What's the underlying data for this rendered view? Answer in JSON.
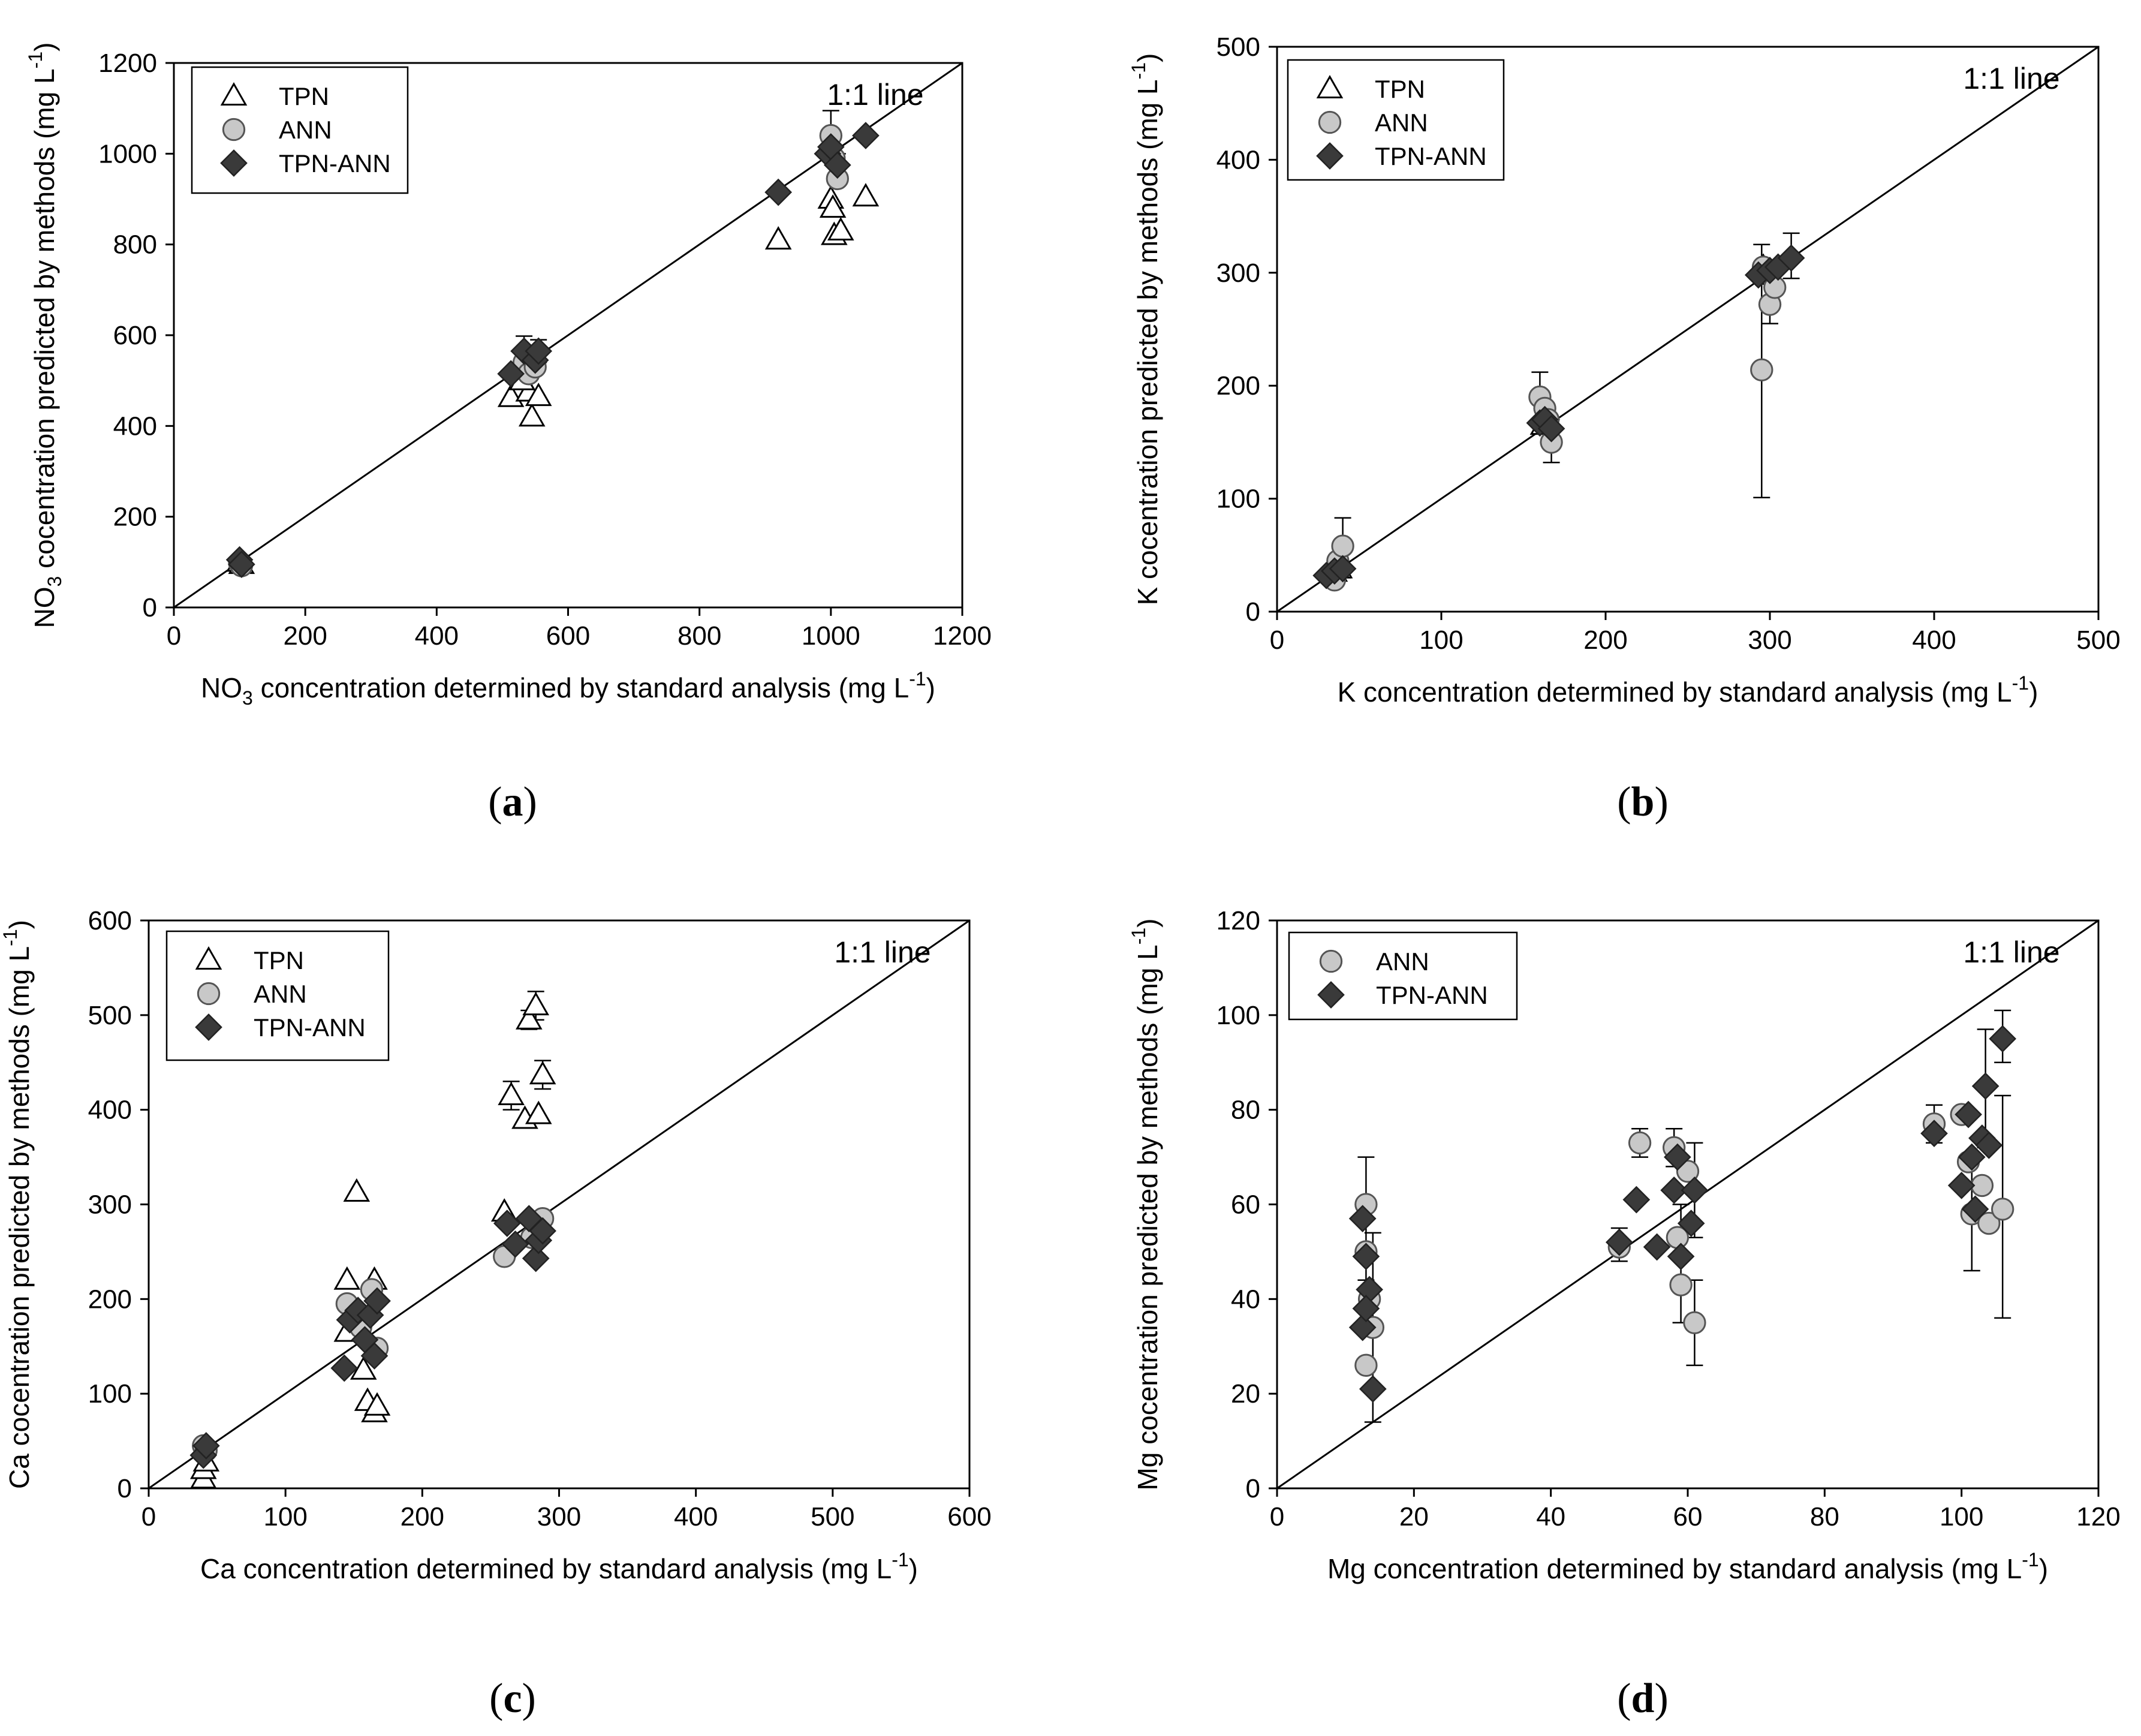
{
  "figure": {
    "one_to_one_label": "1:1 line"
  },
  "colors": {
    "tpn_fill": "#ffffff",
    "ann_fill": "#c8c8c8",
    "tpnann_fill": "#3a3a3a",
    "stroke": "#000000"
  },
  "chart_data": [
    {
      "id": "a",
      "type": "scatter",
      "caption": "a",
      "xlabel": "NO3 concentration determined by standard analysis (mg L-1)",
      "ylabel": "NO3 cocentration predicted by methods (mg L-1)",
      "xlabel_parts": {
        "pre": "NO",
        "sub": "3",
        "mid": " concentration determined by standard analysis (mg L",
        "sup": "-1",
        "post": ")"
      },
      "ylabel_parts": {
        "pre": "NO",
        "sub": "3",
        "mid": " cocentration predicted by methods (mg L",
        "sup": "-1",
        "post": ")"
      },
      "xlim": [
        0,
        1200
      ],
      "ylim": [
        0,
        1200
      ],
      "xticks": [
        "0",
        "200",
        "400",
        "600",
        "800",
        "1000",
        "1200"
      ],
      "yticks": [
        "0",
        "200",
        "400",
        "600",
        "800",
        "1000",
        "1200"
      ],
      "legend": [
        "TPN",
        "ANN",
        "TPN-ANN"
      ],
      "series": [
        {
          "name": "TPN",
          "marker": "triangle",
          "points": [
            [
              100,
              100
            ],
            [
              103,
              95
            ],
            [
              513,
              463
            ],
            [
              540,
              475
            ],
            [
              545,
              420
            ],
            [
              555,
              465
            ],
            [
              530,
              500
            ],
            [
              920,
              810
            ],
            [
              1000,
              900
            ],
            [
              1003,
              880
            ],
            [
              1005,
              820
            ],
            [
              1015,
              830
            ],
            [
              1053,
              905
            ]
          ]
        },
        {
          "name": "ANN",
          "marker": "circle",
          "points": [
            [
              100,
              98
            ],
            [
              103,
              92
            ],
            [
              533,
              540
            ],
            [
              540,
              515
            ],
            [
              550,
              530
            ],
            [
              1000,
              1040
            ],
            [
              1010,
              945
            ],
            [
              1005,
              990
            ]
          ]
        },
        {
          "name": "TPN-ANN",
          "marker": "diamond",
          "points": [
            [
              100,
              105
            ],
            [
              103,
              95
            ],
            [
              513,
              515
            ],
            [
              533,
              565
            ],
            [
              550,
              545
            ],
            [
              555,
              565
            ],
            [
              920,
              915
            ],
            [
              995,
              1000
            ],
            [
              1000,
              1015
            ],
            [
              1010,
              975
            ],
            [
              1053,
              1040
            ]
          ]
        }
      ],
      "errorbars": [
        {
          "x": 1000,
          "y": 1040,
          "lo": 990,
          "hi": 1095
        },
        {
          "x": 533,
          "y": 565,
          "lo": 540,
          "hi": 598
        },
        {
          "x": 555,
          "y": 565,
          "lo": 540,
          "hi": 590
        },
        {
          "x": 1010,
          "y": 975,
          "lo": 950,
          "hi": 1000
        }
      ]
    },
    {
      "id": "b",
      "type": "scatter",
      "caption": "b",
      "xlabel": "K concentration determined by standard analysis (mg L-1)",
      "ylabel": "K cocentration predicted by methods (mg L-1)",
      "xlabel_parts": {
        "pre": "K concentration determined by standard analysis (mg L",
        "sub": "",
        "mid": "",
        "sup": "-1",
        "post": ")"
      },
      "ylabel_parts": {
        "pre": "K cocentration predicted by methods (mg L",
        "sub": "",
        "mid": "",
        "sup": "-1",
        "post": ")"
      },
      "xlim": [
        0,
        500
      ],
      "ylim": [
        0,
        500
      ],
      "xticks": [
        "0",
        "100",
        "200",
        "300",
        "400",
        "500"
      ],
      "yticks": [
        "0",
        "100",
        "200",
        "300",
        "400",
        "500"
      ],
      "legend": [
        "TPN",
        "ANN",
        "TPN-ANN"
      ],
      "series": [
        {
          "name": "TPN",
          "marker": "triangle",
          "points": [
            [
              35,
              35
            ],
            [
              38,
              38
            ],
            [
              162,
              165
            ],
            [
              165,
              170
            ],
            [
              296,
              305
            ],
            [
              300,
              300
            ]
          ]
        },
        {
          "name": "ANN",
          "marker": "circle",
          "points": [
            [
              35,
              28
            ],
            [
              37,
              45
            ],
            [
              40,
              58
            ],
            [
              160,
              190
            ],
            [
              163,
              180
            ],
            [
              165,
              170
            ],
            [
              167,
              150
            ],
            [
              295,
              214
            ],
            [
              300,
              272
            ],
            [
              303,
              287
            ],
            [
              296,
              305
            ]
          ]
        },
        {
          "name": "TPN-ANN",
          "marker": "diamond",
          "points": [
            [
              30,
              32
            ],
            [
              35,
              36
            ],
            [
              40,
              38
            ],
            [
              160,
              167
            ],
            [
              163,
              170
            ],
            [
              167,
              162
            ],
            [
              293,
              298
            ],
            [
              300,
              302
            ],
            [
              305,
              305
            ],
            [
              313,
              313
            ]
          ]
        }
      ],
      "errorbars": [
        {
          "x": 295,
          "y": 214,
          "lo": 101,
          "hi": 325
        },
        {
          "x": 40,
          "y": 58,
          "lo": 30,
          "hi": 83
        },
        {
          "x": 160,
          "y": 190,
          "lo": 165,
          "hi": 212
        },
        {
          "x": 167,
          "y": 150,
          "lo": 132,
          "hi": 170
        },
        {
          "x": 313,
          "y": 313,
          "lo": 295,
          "hi": 335
        },
        {
          "x": 300,
          "y": 272,
          "lo": 255,
          "hi": 290
        }
      ]
    },
    {
      "id": "c",
      "type": "scatter",
      "caption": "c",
      "xlabel": "Ca concentration determined by standard analysis (mg L-1)",
      "ylabel": "Ca cocentration predicted by methods (mg L-1)",
      "xlabel_parts": {
        "pre": "Ca concentration determined by standard analysis (mg L",
        "sub": "",
        "mid": "",
        "sup": "-1",
        "post": ")"
      },
      "ylabel_parts": {
        "pre": "Ca cocentration predicted by methods (mg L",
        "sub": "",
        "mid": "",
        "sup": "-1",
        "post": ")"
      },
      "xlim": [
        0,
        600
      ],
      "ylim": [
        0,
        600
      ],
      "xticks": [
        "0",
        "100",
        "200",
        "300",
        "400",
        "500",
        "600"
      ],
      "yticks": [
        "0",
        "100",
        "200",
        "300",
        "400",
        "500",
        "600"
      ],
      "legend": [
        "TPN",
        "ANN",
        "TPN-ANN"
      ],
      "series": [
        {
          "name": "TPN",
          "marker": "triangle",
          "points": [
            [
              40,
              10
            ],
            [
              40,
              20
            ],
            [
              42,
              28
            ],
            [
              145,
              165
            ],
            [
              145,
              220
            ],
            [
              152,
              313
            ],
            [
              157,
              125
            ],
            [
              160,
              92
            ],
            [
              165,
              80
            ],
            [
              165,
              220
            ],
            [
              167,
              87
            ],
            [
              260,
              292
            ],
            [
              265,
              415
            ],
            [
              275,
              390
            ],
            [
              278,
              495
            ],
            [
              283,
              510
            ],
            [
              285,
              395
            ],
            [
              288,
              437
            ]
          ]
        },
        {
          "name": "ANN",
          "marker": "circle",
          "points": [
            [
              40,
              45
            ],
            [
              42,
              40
            ],
            [
              145,
              195
            ],
            [
              155,
              170
            ],
            [
              163,
              210
            ],
            [
              167,
              148
            ],
            [
              260,
              245
            ],
            [
              280,
              265
            ],
            [
              285,
              280
            ],
            [
              288,
              285
            ]
          ]
        },
        {
          "name": "TPN-ANN",
          "marker": "diamond",
          "points": [
            [
              40,
              35
            ],
            [
              42,
              45
            ],
            [
              143,
              127
            ],
            [
              147,
              178
            ],
            [
              153,
              188
            ],
            [
              158,
              157
            ],
            [
              162,
              183
            ],
            [
              165,
              140
            ],
            [
              167,
              198
            ],
            [
              262,
              280
            ],
            [
              268,
              258
            ],
            [
              278,
              285
            ],
            [
              283,
              243
            ],
            [
              285,
              262
            ],
            [
              288,
              272
            ]
          ]
        }
      ],
      "errorbars": [
        {
          "x": 283,
          "y": 510,
          "lo": 495,
          "hi": 525
        },
        {
          "x": 288,
          "y": 437,
          "lo": 422,
          "hi": 452
        },
        {
          "x": 265,
          "y": 415,
          "lo": 400,
          "hi": 430
        },
        {
          "x": 278,
          "y": 495,
          "lo": 485,
          "hi": 505
        }
      ]
    },
    {
      "id": "d",
      "type": "scatter",
      "caption": "d",
      "xlabel": "Mg concentration determined by standard analysis (mg L-1)",
      "ylabel": "Mg cocentration predicted by methods (mg L-1)",
      "xlabel_parts": {
        "pre": "Mg concentration determined by standard analysis (mg L",
        "sub": "",
        "mid": "",
        "sup": "-1",
        "post": ")"
      },
      "ylabel_parts": {
        "pre": "Mg cocentration predicted by methods (mg L",
        "sub": "",
        "mid": "",
        "sup": "-1",
        "post": ")"
      },
      "xlim": [
        0,
        120
      ],
      "ylim": [
        0,
        120
      ],
      "xticks": [
        "0",
        "20",
        "40",
        "60",
        "80",
        "100",
        "120"
      ],
      "yticks": [
        "0",
        "20",
        "40",
        "60",
        "80",
        "100",
        "120"
      ],
      "legend": [
        "ANN",
        "TPN-ANN"
      ],
      "series": [
        {
          "name": "ANN",
          "marker": "circle",
          "points": [
            [
              13,
              60
            ],
            [
              13,
              50
            ],
            [
              13.5,
              40
            ],
            [
              14,
              34
            ],
            [
              13,
              26
            ],
            [
              50,
              51
            ],
            [
              53,
              73
            ],
            [
              58,
              72
            ],
            [
              58.5,
              53
            ],
            [
              59,
              43
            ],
            [
              60,
              67
            ],
            [
              61,
              35
            ],
            [
              96,
              77
            ],
            [
              100,
              79
            ],
            [
              101,
              69
            ],
            [
              101.5,
              58
            ],
            [
              103,
              64
            ],
            [
              104,
              56
            ],
            [
              106,
              59
            ]
          ]
        },
        {
          "name": "TPN-ANN",
          "marker": "diamond",
          "points": [
            [
              12.5,
              57
            ],
            [
              13,
              49
            ],
            [
              13.5,
              42
            ],
            [
              12.5,
              34
            ],
            [
              13,
              38
            ],
            [
              14,
              21
            ],
            [
              50,
              52
            ],
            [
              52.5,
              61
            ],
            [
              55.5,
              51
            ],
            [
              58,
              63
            ],
            [
              58.5,
              70
            ],
            [
              59,
              49
            ],
            [
              60.5,
              56
            ],
            [
              61,
              63
            ],
            [
              96,
              75
            ],
            [
              100,
              64
            ],
            [
              101,
              79
            ],
            [
              101.5,
              70
            ],
            [
              102,
              59
            ],
            [
              103,
              74
            ],
            [
              103.5,
              85
            ],
            [
              104,
              72.5
            ],
            [
              106,
              95
            ]
          ]
        }
      ],
      "errorbars": [
        {
          "x": 13,
          "y": 57,
          "lo": 44,
          "hi": 70
        },
        {
          "x": 14,
          "y": 34,
          "lo": 14,
          "hi": 54
        },
        {
          "x": 61,
          "y": 35,
          "lo": 26,
          "hi": 44
        },
        {
          "x": 61,
          "y": 63,
          "lo": 53,
          "hi": 73
        },
        {
          "x": 59,
          "y": 49,
          "lo": 35,
          "hi": 60
        },
        {
          "x": 106,
          "y": 95,
          "lo": 90,
          "hi": 101
        },
        {
          "x": 106,
          "y": 59,
          "lo": 36,
          "hi": 83
        },
        {
          "x": 103.5,
          "y": 85,
          "lo": 72,
          "hi": 97
        },
        {
          "x": 101.5,
          "y": 58,
          "lo": 46,
          "hi": 70
        },
        {
          "x": 58,
          "y": 72,
          "lo": 68,
          "hi": 76
        },
        {
          "x": 53,
          "y": 73,
          "lo": 70,
          "hi": 76
        },
        {
          "x": 96,
          "y": 77,
          "lo": 73,
          "hi": 81
        },
        {
          "x": 50,
          "y": 51,
          "lo": 48,
          "hi": 55
        }
      ]
    }
  ]
}
